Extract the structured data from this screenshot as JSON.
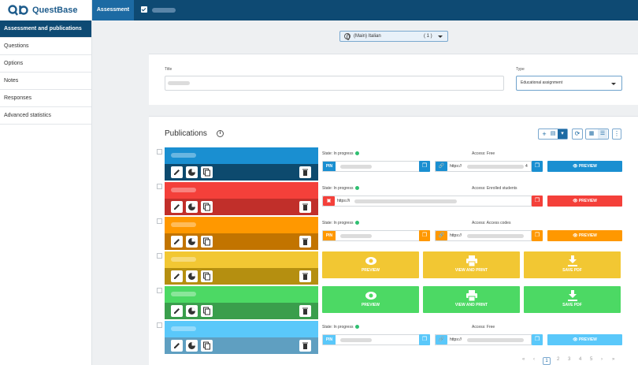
{
  "app": {
    "name": "QuestBase"
  },
  "topbar": {
    "tab_label": "Assessment"
  },
  "sidebar": {
    "items": [
      {
        "label": "Assessment and publications",
        "active": true
      },
      {
        "label": "Questions"
      },
      {
        "label": "Options"
      },
      {
        "label": "Notes"
      },
      {
        "label": "Responses"
      },
      {
        "label": "Advanced statistics"
      }
    ]
  },
  "language": {
    "label": "(Main) Italian",
    "count": "( 1 )"
  },
  "form": {
    "title_label": "Title",
    "type_label": "Type",
    "type_value": "Educational assignment"
  },
  "publications": {
    "heading": "Publications",
    "rows": [
      {
        "color": "#1a8fd1",
        "dark": "#0d4a6e",
        "state": "State: In progress",
        "access": "Access: Free",
        "mode": "pin",
        "pin_tag": "PIN",
        "link": "https://",
        "link_suffix": "4",
        "preview": "PREVIEW"
      },
      {
        "color": "#f4403a",
        "dark": "#c12f2a",
        "state": "State: In progress",
        "access": "Access: Enrolled students",
        "mode": "link",
        "link": "https://i",
        "preview": "PREVIEW"
      },
      {
        "color": "#ff9800",
        "dark": "#c27400",
        "state": "State: In progress",
        "access": "Access: Access codes",
        "mode": "pin",
        "pin_tag": "PIN",
        "link": "https://",
        "link_suffix": "",
        "preview": "PREVIEW"
      },
      {
        "color": "#f2c733",
        "dark": "#b58f10",
        "mode": "big",
        "btns": [
          "PREVIEW",
          "VIEW AND PRINT",
          "SAVE PDF"
        ]
      },
      {
        "color": "#4cd964",
        "dark": "#3a9e4c",
        "mode": "big",
        "btns": [
          "PREVIEW",
          "VIEW AND PRINT",
          "SAVE PDF"
        ]
      },
      {
        "color": "#5ac8fa",
        "dark": "#5f9fc1",
        "state": "State: In progress",
        "access": "Access: Free",
        "mode": "pin",
        "pin_tag": "PIN",
        "link": "https://",
        "link_suffix": "",
        "preview": "PREVIEW"
      }
    ]
  },
  "pagination": {
    "prev_first": "«",
    "prev": "‹",
    "pages": [
      "1",
      "2",
      "3",
      "4",
      "5"
    ],
    "next": "›",
    "next_last": "»"
  },
  "icons": {
    "logo": "questbase-logo-icon",
    "language": "globe-icon",
    "info": "info-icon",
    "edit": "pencil-icon",
    "stats": "pie-chart-icon",
    "copy": "copy-icon",
    "delete": "trash-icon",
    "preview": "eye-icon",
    "print": "printer-icon",
    "download": "download-icon",
    "link": "link-icon"
  }
}
